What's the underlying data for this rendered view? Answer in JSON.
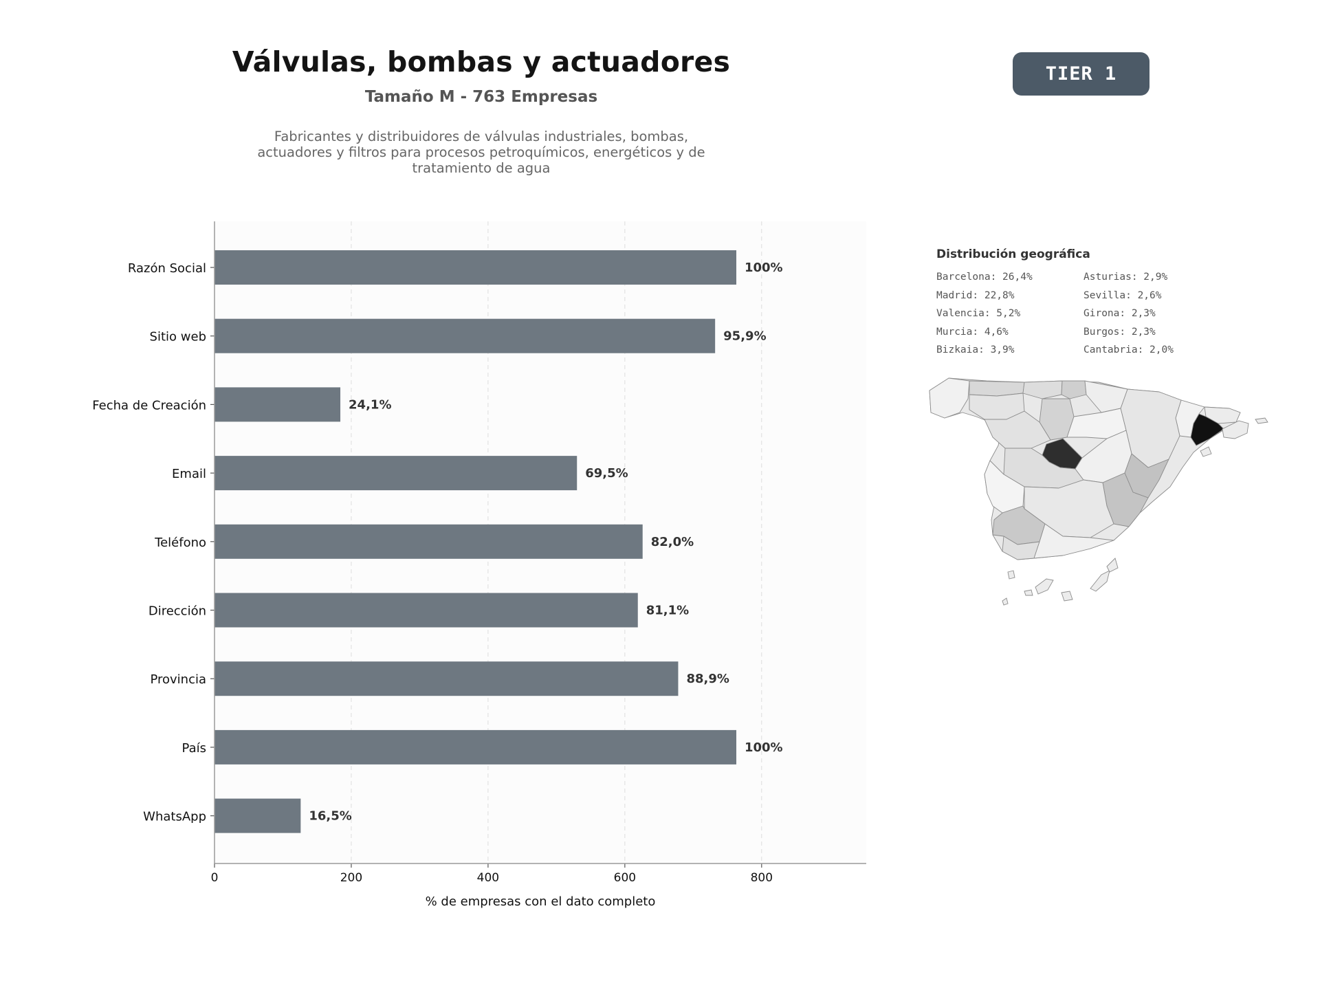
{
  "header": {
    "title": "Válvulas, bombas y actuadores",
    "subtitle": "Tamaño M - 763 Empresas",
    "description": "Fabricantes y distribuidores de válvulas industriales, bombas, actuadores y filtros para procesos petroquímicos, energéticos y de tratamiento de agua",
    "badge": "TIER 1"
  },
  "colors": {
    "bar": "#6e7881",
    "badge": "#4c5a67",
    "plot_background": "#fcfcfc",
    "map_darkest": "#111111",
    "map_dark": "#2e2e2e",
    "map_light": "#f1f1f1"
  },
  "chart_data": {
    "type": "bar",
    "orientation": "horizontal",
    "categories": [
      "Razón Social",
      "Sitio web",
      "Fecha de Creación",
      "Email",
      "Teléfono",
      "Dirección",
      "Provincia",
      "País",
      "WhatsApp"
    ],
    "values": [
      763,
      732,
      184,
      530,
      626,
      619,
      678,
      763,
      126
    ],
    "data_labels": [
      "100%",
      "95,9%",
      "24,1%",
      "69,5%",
      "82,0%",
      "81,1%",
      "88,9%",
      "100%",
      "16,5%"
    ],
    "xlabel": "% de empresas con el dato completo",
    "ylabel": "",
    "xlim": [
      0,
      953
    ],
    "xticks": [
      0,
      200,
      400,
      600,
      800
    ],
    "grid": "vertical dashed",
    "legend": "none"
  },
  "geo": {
    "title": "Distribución geográfica",
    "items": [
      "Barcelona: 26,4%",
      "Asturias: 2,9%",
      "Madrid: 22,8%",
      "Sevilla: 2,6%",
      "Valencia: 5,2%",
      "Girona: 2,3%",
      "Murcia: 4,6%",
      "Burgos: 2,3%",
      "Bizkaia: 3,9%",
      "Cantabria: 2,0%"
    ]
  }
}
